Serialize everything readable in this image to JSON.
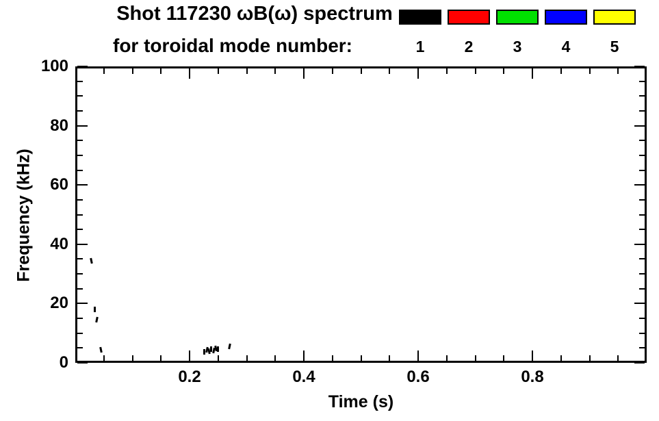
{
  "title": {
    "line1": "Shot 117230 ωB(ω) spectrum",
    "line2": "for toroidal mode number:"
  },
  "legend": {
    "entries": [
      {
        "label": "1",
        "color": "#000000"
      },
      {
        "label": "2",
        "color": "#ff0000"
      },
      {
        "label": "3",
        "color": "#00e000"
      },
      {
        "label": "4",
        "color": "#0000ff"
      },
      {
        "label": "5",
        "color": "#ffff00"
      }
    ]
  },
  "chart_data": {
    "type": "scatter",
    "title": "Shot 117230 ωB(ω) spectrum for toroidal mode number: 1 2 3 4 5",
    "xlabel": "Time (s)",
    "ylabel": "Frequency (kHz)",
    "xlim": [
      0,
      1
    ],
    "ylim": [
      0,
      100
    ],
    "grid": false,
    "legend_position": "top-right",
    "x_major_ticks": [
      {
        "value": 0.2,
        "label": "0.2"
      },
      {
        "value": 0.4,
        "label": "0.4"
      },
      {
        "value": 0.6,
        "label": "0.6"
      },
      {
        "value": 0.8,
        "label": "0.8"
      }
    ],
    "x_minor_step": 0.05,
    "y_major_ticks": [
      {
        "value": 0,
        "label": "0"
      },
      {
        "value": 20,
        "label": "20"
      },
      {
        "value": 40,
        "label": "40"
      },
      {
        "value": 60,
        "label": "60"
      },
      {
        "value": 80,
        "label": "80"
      },
      {
        "value": 100,
        "label": "100"
      }
    ],
    "y_minor_step": 5,
    "series": [
      {
        "name": "mode 1",
        "color": "#000000",
        "points": [
          {
            "t": 0.028,
            "f": 34.5
          },
          {
            "t": 0.034,
            "f": 18.0
          },
          {
            "t": 0.038,
            "f": 14.5
          },
          {
            "t": 0.045,
            "f": 4.5
          },
          {
            "t": 0.226,
            "f": 3.8
          },
          {
            "t": 0.23,
            "f": 4.5
          },
          {
            "t": 0.234,
            "f": 4.0
          },
          {
            "t": 0.238,
            "f": 4.6
          },
          {
            "t": 0.242,
            "f": 4.2
          },
          {
            "t": 0.246,
            "f": 4.9
          },
          {
            "t": 0.25,
            "f": 4.6
          },
          {
            "t": 0.27,
            "f": 5.5
          }
        ]
      }
    ]
  }
}
